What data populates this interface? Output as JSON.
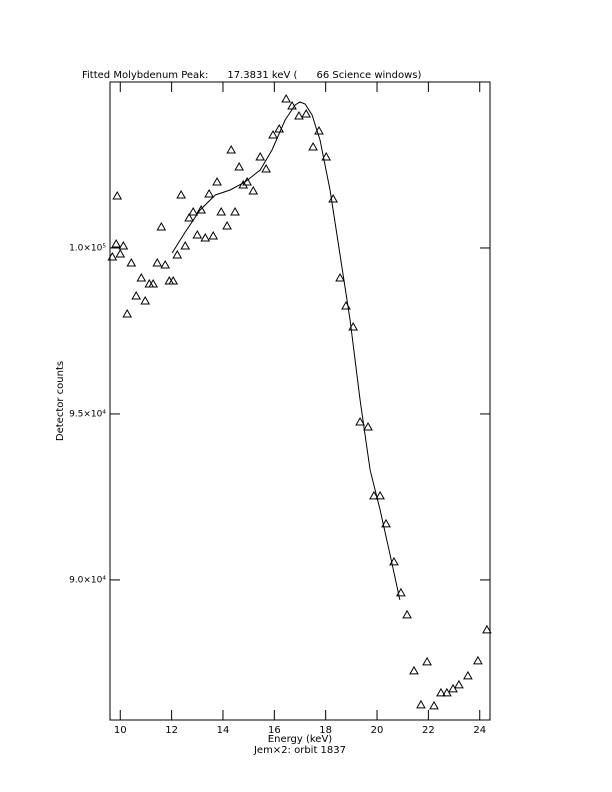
{
  "chart_data": {
    "type": "scatter",
    "title": "Fitted Molybdenum Peak:      17.3831 keV (      66 Science windows)",
    "x_label": "Energy (keV)",
    "subtitle": "Jem×2: orbit 1837",
    "y_label": "Detector counts",
    "xlim": [
      9.6,
      24.4
    ],
    "ylim": [
      85780,
      105000
    ],
    "xticks": [
      10,
      12,
      14,
      16,
      18,
      20,
      22,
      24
    ],
    "yticks": [
      {
        "value": 90000,
        "label": "9.0×10⁴"
      },
      {
        "value": 95000,
        "label": "9.5×10⁴"
      },
      {
        "value": 100000,
        "label": "1.0×10⁵"
      }
    ],
    "series": [
      {
        "type": "scatter",
        "color": "#000000",
        "x": [
          9.69,
          9.84,
          9.88,
          10.0,
          10.12,
          10.27,
          10.43,
          10.62,
          10.82,
          10.97,
          11.13,
          11.28,
          11.44,
          11.6,
          11.75,
          11.91,
          12.06,
          12.22,
          12.37,
          12.53,
          12.68,
          12.84,
          13.0,
          13.15,
          13.31,
          13.46,
          13.62,
          13.77,
          13.93,
          14.16,
          14.32,
          14.47,
          14.63,
          14.79,
          14.94,
          15.18,
          15.45,
          15.68,
          15.95,
          16.19,
          16.46,
          16.69,
          16.96,
          17.24,
          17.51,
          17.74,
          18.02,
          18.29,
          18.56,
          18.79,
          19.07,
          19.34,
          19.65,
          19.88,
          20.12,
          20.35,
          20.66,
          20.93,
          21.17,
          21.44,
          21.71,
          21.95,
          22.22,
          22.49,
          22.72,
          22.96,
          23.19,
          23.54,
          23.93,
          24.28
        ],
        "values": [
          99729,
          100120,
          101566,
          99819,
          100060,
          98012,
          99548,
          98554,
          99096,
          98404,
          98916,
          98916,
          99548,
          100633,
          99488,
          99006,
          99006,
          99789,
          101596,
          100060,
          100904,
          101084,
          100392,
          101145,
          100301,
          101626,
          100361,
          101988,
          101084,
          100663,
          102952,
          101084,
          102440,
          101898,
          101988,
          101717,
          102741,
          102379,
          103404,
          103584,
          104488,
          104277,
          103976,
          104036,
          103042,
          103524,
          102741,
          101476,
          99096,
          98253,
          97620,
          94759,
          94608,
          92530,
          92530,
          91687,
          90542,
          89609,
          88946,
          87259,
          86235,
          87530,
          86205,
          86597,
          86597,
          86717,
          86838,
          87108,
          87560,
          88494
        ]
      },
      {
        "type": "line",
        "color": "#000000",
        "x": [
          12.02,
          12.53,
          13.11,
          13.7,
          14.28,
          14.86,
          15.45,
          15.91,
          16.42,
          16.81,
          17.0,
          17.2,
          17.47,
          17.78,
          18.17,
          18.56,
          18.95,
          19.34,
          19.73,
          20.12,
          20.51,
          20.89
        ],
        "values": [
          99849,
          100482,
          101145,
          101596,
          101747,
          101988,
          102349,
          102952,
          103855,
          104307,
          104398,
          104337,
          104006,
          103253,
          101747,
          99789,
          97831,
          95422,
          93313,
          92109,
          90753,
          89398
        ]
      }
    ]
  }
}
